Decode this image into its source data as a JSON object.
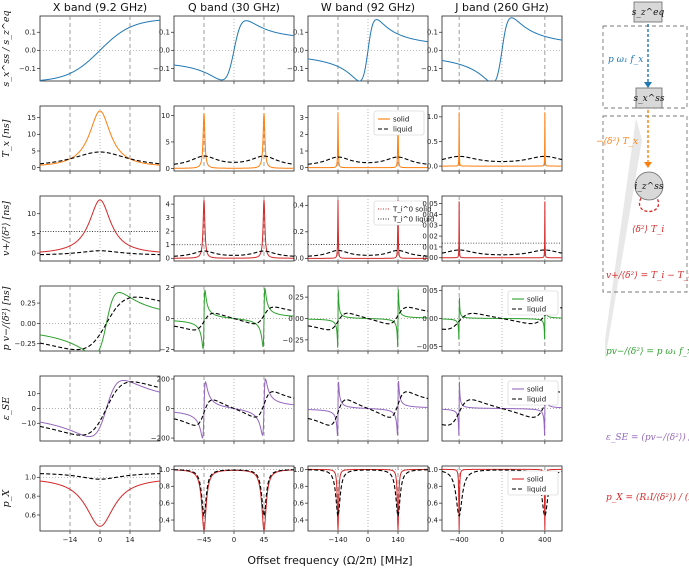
{
  "chart_data": {
    "type": "line",
    "xlabel": "Offset frequency (Ω/2π) [MHz]",
    "columns": [
      {
        "title": "X band (9.2 GHz)",
        "guide": 14,
        "xrange": [
          -28,
          28
        ],
        "xticks": [
          -14,
          0,
          14
        ],
        "xtick_labels": [
          "−14",
          "0",
          "14"
        ]
      },
      {
        "title": "Q band (30 GHz)",
        "guide": 45,
        "xrange": [
          -90,
          90
        ],
        "xticks": [
          -45,
          0,
          45
        ],
        "xtick_labels": [
          "−45",
          "0",
          "45"
        ]
      },
      {
        "title": "W band (92 GHz)",
        "guide": 140,
        "xrange": [
          -280,
          280
        ],
        "xticks": [
          -140,
          0,
          140
        ],
        "xtick_labels": [
          "−140",
          "0",
          "140"
        ]
      },
      {
        "title": "J band (260 GHz)",
        "guide": 400,
        "xrange": [
          -560,
          560
        ],
        "xticks": [
          -400,
          0,
          400
        ],
        "xtick_labels": [
          "−400",
          "0",
          "400"
        ]
      }
    ],
    "rows": [
      {
        "ylabel": "s_x^ss / s_z^eq",
        "kind": "sx",
        "ylims": [
          [
            -0.17,
            0.19
          ],
          [
            -0.17,
            0.19
          ],
          [
            -0.17,
            0.19
          ],
          [
            -0.17,
            0.19
          ]
        ],
        "yticks": [
          -0.1,
          0.0,
          0.1
        ],
        "ytick_labels": [
          "−0.1",
          "0.0",
          "0.1"
        ],
        "hline": 0,
        "series": [
          {
            "name": "solid",
            "color": "#1f77b4",
            "style": "solid"
          }
        ]
      },
      {
        "ylabel": "T_x [ns]",
        "kind": "Tx",
        "ylims": [
          [
            -1,
            18.5
          ],
          [
            -0.5,
            11.8
          ],
          [
            -0.2,
            3.7
          ],
          [
            -0.1,
            1.22
          ]
        ],
        "yticks": [
          [
            0,
            5,
            10,
            15
          ],
          [
            0,
            5,
            10
          ],
          [
            0,
            1,
            2,
            3
          ],
          [
            0.0,
            0.5,
            1.0
          ]
        ],
        "ytick_labels": [
          [
            "0",
            "5",
            "10",
            "15"
          ],
          [
            "0",
            "5",
            "10"
          ],
          [
            "0",
            "1",
            "2",
            "3"
          ],
          [
            "0.0",
            "0.5",
            "1.0"
          ]
        ],
        "peaks": [
          17,
          11,
          3.5,
          1.15
        ],
        "liquid_peaks": [
          4.7,
          2.0,
          0.55,
          0.17
        ],
        "legend_col": 2,
        "legend": [
          "solid",
          "liquid"
        ],
        "series": [
          {
            "name": "solid",
            "color": "#ff7f0e",
            "style": "solid"
          },
          {
            "name": "liquid",
            "color": "#000000",
            "style": "dashed"
          }
        ]
      },
      {
        "ylabel": "v+/⟨δ²⟩ [ns]",
        "kind": "vp",
        "ylims": [
          [
            -2,
            14.5
          ],
          [
            -0.2,
            4.6
          ],
          [
            -0.02,
            0.47
          ],
          [
            -0.003,
            0.057
          ]
        ],
        "yticks": [
          [
            0,
            5,
            10
          ],
          [
            0,
            1,
            2,
            3,
            4
          ],
          [
            0.0,
            0.2,
            0.4
          ],
          [
            0.0,
            0.01,
            0.02,
            0.03,
            0.04,
            0.05
          ]
        ],
        "ytick_labels": [
          [
            "0",
            "5",
            "10"
          ],
          [
            "0",
            "1",
            "2",
            "3",
            "4"
          ],
          [
            "0.0",
            "0.2",
            "0.4"
          ],
          [
            "0.00",
            "0.01",
            "0.02",
            "0.03",
            "0.04",
            "0.05"
          ]
        ],
        "peaks": [
          13.5,
          4.3,
          0.44,
          0.052
        ],
        "liquid_peaks": [
          0.6,
          0.45,
          0.05,
          0.006
        ],
        "t1_levels": [
          5.5,
          1.0,
          0.105,
          0.0135
        ],
        "legend_col": 2,
        "legend": [
          "T_i^0 solid",
          "T_i^0 liquid"
        ],
        "series": [
          {
            "name": "solid",
            "color": "#d62728",
            "style": "solid"
          },
          {
            "name": "liquid",
            "color": "#000000",
            "style": "dashed"
          }
        ]
      },
      {
        "ylabel": "p v−/⟨δ²⟩ [ns]",
        "kind": "vm",
        "ylims": [
          [
            -0.34,
            0.46
          ],
          [
            -2.1,
            2.1
          ],
          [
            -0.38,
            0.38
          ],
          [
            -0.058,
            0.058
          ]
        ],
        "yticks": [
          [
            -0.25,
            0.0,
            0.25
          ],
          [
            -2,
            0,
            2
          ],
          [
            -0.25,
            0.0,
            0.25
          ],
          [
            -0.05,
            0.0,
            0.05
          ]
        ],
        "ytick_labels": [
          [
            "−0.25",
            "0.00",
            "0.25"
          ],
          [
            "−2",
            "0",
            "2"
          ],
          [
            "−0.25",
            "0.00",
            "0.25"
          ],
          [
            "−0.05",
            "0.00",
            "0.05"
          ]
        ],
        "legend_col": 3,
        "legend": [
          "solid",
          "liquid"
        ],
        "series": [
          {
            "name": "solid",
            "color": "#2ca02c",
            "style": "solid"
          },
          {
            "name": "liquid",
            "color": "#000000",
            "style": "dashed"
          }
        ]
      },
      {
        "ylabel": "ε_SE",
        "kind": "eps",
        "ylims": [
          [
            -22,
            22
          ],
          [
            -220,
            220
          ],
          [
            -220,
            220
          ],
          [
            -220,
            220
          ]
        ],
        "yticks": [
          [
            -10,
            0,
            10
          ],
          [
            -200,
            0,
            200
          ],
          [],
          []
        ],
        "ytick_labels": [
          [
            "−10",
            "0",
            "10"
          ],
          [
            "−200",
            "0",
            "200"
          ],
          [],
          []
        ],
        "legend_col": 3,
        "legend": [
          "solid",
          "liquid"
        ],
        "series": [
          {
            "name": "solid",
            "color": "#9467bd",
            "style": "solid"
          },
          {
            "name": "liquid",
            "color": "#000000",
            "style": "dashed"
          }
        ]
      },
      {
        "ylabel": "p_X",
        "kind": "px",
        "ylims": [
          [
            0.43,
            1.12
          ],
          [
            0.27,
            1.04
          ],
          [
            0.27,
            1.04
          ],
          [
            0.27,
            1.04
          ]
        ],
        "yticks": [
          [
            0.6,
            0.8,
            1.0
          ],
          [
            0.4,
            0.6,
            0.8,
            1.0
          ],
          [
            0.4,
            0.6,
            0.8,
            1.0
          ],
          [
            0.4,
            0.6,
            0.8,
            1.0
          ]
        ],
        "ytick_labels": [
          [
            "0.6",
            "0.8",
            "1.0"
          ],
          [
            "0.4",
            "0.6",
            "0.8",
            "1.0"
          ],
          [
            "0.4",
            "0.6",
            "0.8",
            "1.0"
          ],
          [
            "0.4",
            "0.6",
            "0.8",
            "1.0"
          ]
        ],
        "legend_col": 3,
        "legend": [
          "solid",
          "liquid"
        ],
        "series": [
          {
            "name": "solid",
            "color": "#d62728",
            "style": "solid"
          },
          {
            "name": "liquid",
            "color": "#000000",
            "style": "dashed"
          }
        ]
      }
    ]
  },
  "diagram": {
    "node_top": "s_z^eq",
    "node_mid": "s_x^ss",
    "node_bottom": "i_z^ss",
    "label_rate": "p ω₁ f_x",
    "label_tx": "−⟨δ²⟩ T_x",
    "label_ti": "⟨δ²⟩ T_i",
    "eq_vplus": "v+/⟨δ²⟩ = T_i − T_i^0",
    "eq_vminus": "pv−/⟨δ²⟩ = p ω₁ f_x T_x",
    "eq_eps": "ε_SE = (pv−/⟨δ²⟩) / (R₁I/⟨δ²⟩ + v+/⟨δ²⟩)",
    "eq_px": "p_X = (R₁I/⟨δ²⟩) / (R₁I/⟨δ²⟩ + v+/⟨δ²⟩)",
    "colors": {
      "blue": "#1f77b4",
      "orange": "#ff7f0e",
      "red": "#d62728",
      "green": "#2ca02c",
      "purple": "#9467bd"
    }
  }
}
